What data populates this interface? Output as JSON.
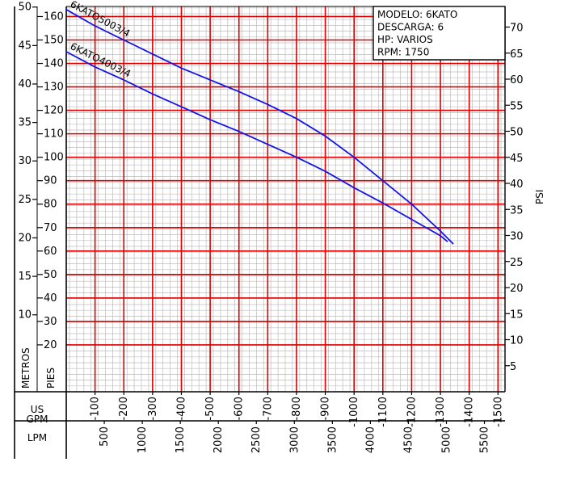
{
  "chart_data": {
    "type": "line",
    "xlabel_primary": "US GPM",
    "xlabel_secondary": "LPM",
    "ylabel_left_outer": "METROS",
    "ylabel_left_inner": "PIES",
    "ylabel_right": "PSI",
    "x_gpm_ticks": [
      "100",
      "200",
      "300",
      "400",
      "500",
      "600",
      "700",
      "800",
      "900",
      "1000",
      "1100",
      "1200",
      "1300",
      "1400",
      "1500"
    ],
    "x_lpm_ticks": [
      "500",
      "1000",
      "1500",
      "2000",
      "2500",
      "3000",
      "3500",
      "4000",
      "4500",
      "5000",
      "5500"
    ],
    "y_metros_ticks": [
      "10",
      "15",
      "20",
      "25",
      "30",
      "35",
      "40",
      "45",
      "50"
    ],
    "y_pies_ticks": [
      "20",
      "30",
      "40",
      "50",
      "60",
      "70",
      "80",
      "90",
      "100",
      "110",
      "120",
      "130",
      "140",
      "150",
      "160"
    ],
    "y_psi_ticks": [
      "5",
      "10",
      "15",
      "20",
      "25",
      "30",
      "35",
      "40",
      "45",
      "50",
      "55",
      "60",
      "65",
      "70"
    ],
    "xlim_gpm": [
      0,
      1500
    ],
    "ylim_pies": [
      0,
      170
    ],
    "grid": true,
    "legend": {
      "position": "top-right",
      "lines": [
        "MODELO: 6KATO",
        "DESCARGA: 6",
        "HP: VARIOS",
        "RPM: 1750"
      ]
    },
    "series": [
      {
        "name": "6KATO5003/4",
        "color": "#1414e6",
        "x": [
          0,
          100,
          200,
          300,
          400,
          500,
          600,
          700,
          800,
          900,
          1000,
          1100,
          1200,
          1300,
          1345
        ],
        "y": [
          163,
          156,
          150,
          144,
          138,
          133,
          128,
          122.5,
          116.5,
          109,
          100,
          90,
          80,
          68.5,
          63
        ]
      },
      {
        "name": "6KATO4003/4",
        "color": "#1414e6",
        "x": [
          0,
          100,
          200,
          300,
          400,
          500,
          600,
          700,
          800,
          900,
          1000,
          1100,
          1200,
          1300,
          1325
        ],
        "y": [
          145,
          138.5,
          133,
          127,
          121.5,
          116,
          111,
          105.5,
          100,
          94,
          87,
          80.5,
          73.5,
          66.5,
          64
        ]
      }
    ]
  }
}
